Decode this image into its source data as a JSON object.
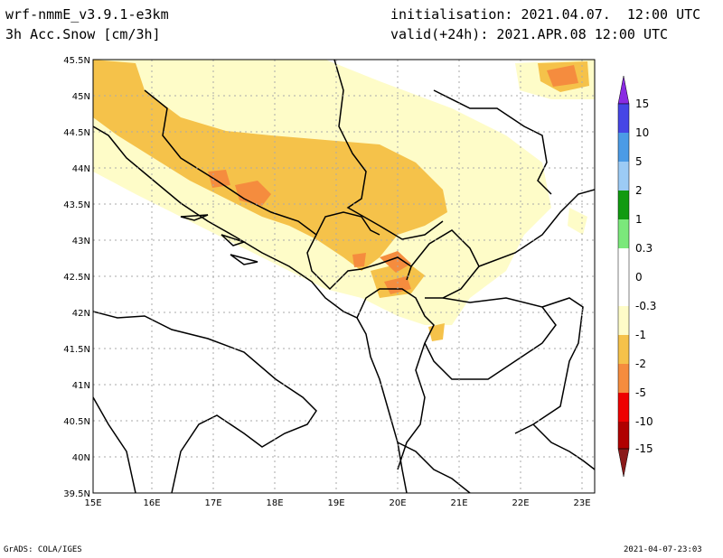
{
  "header": {
    "model": "wrf-nmmE_v3.9.1-e3km",
    "field": "3h Acc.Snow [cm/3h]",
    "init_label": "initialisation:",
    "init_value": "2021.04.07.  12:00 UTC",
    "valid_label": "valid(+24h):",
    "valid_value": "2021.APR.08 12:00 UTC"
  },
  "map": {
    "lat_ticks": [
      "45.5N",
      "45N",
      "44.5N",
      "44N",
      "43.5N",
      "43N",
      "42.5N",
      "42N",
      "41.5N",
      "41N",
      "40.5N",
      "40N",
      "39.5N"
    ],
    "lon_ticks": [
      "15E",
      "16E",
      "17E",
      "18E",
      "19E",
      "20E",
      "21E",
      "22E",
      "23E"
    ]
  },
  "legend": {
    "labels": [
      "15",
      "10",
      "5",
      "2",
      "1",
      "0.3",
      "0",
      "-0.3",
      "-1",
      "-2",
      "-5",
      "-10",
      "-15"
    ],
    "colors": [
      "#9a1a1a",
      "#ee0000",
      "#f58c3e",
      "#f5c24a",
      "#fefcc8",
      "#ffffff",
      "#ffffff",
      "#7be87b",
      "#119a11",
      "#9ccbf5",
      "#4b9be6",
      "#4646e6",
      "#8a2be2"
    ]
  },
  "footer": {
    "left": "GrADS: COLA/IGES",
    "right": "2021-04-07-23:03"
  }
}
